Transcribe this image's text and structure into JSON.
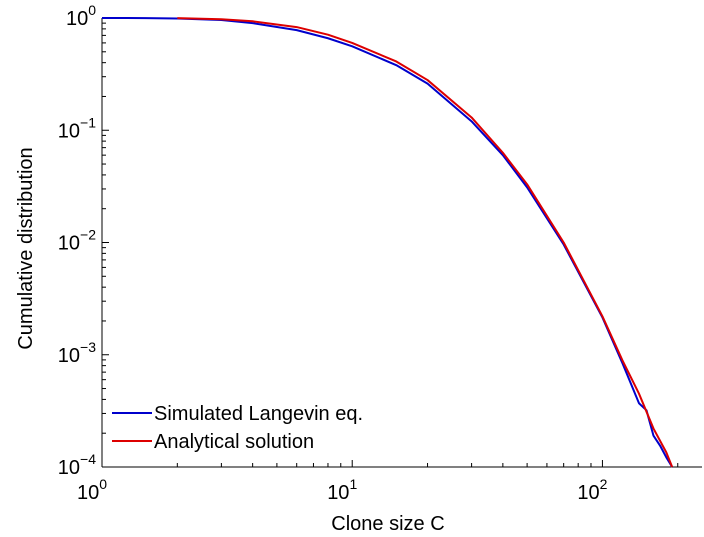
{
  "chart_data": {
    "type": "line",
    "xlabel": "Clone size C",
    "ylabel": "Cumulative distribution",
    "xscale": "log",
    "yscale": "log",
    "xlim": [
      1,
      250
    ],
    "ylim": [
      0.0001,
      1
    ],
    "grid": false,
    "legend_placement": "bottom-left",
    "x_ticks": [
      {
        "base": "10",
        "exp": "0",
        "value": 1
      },
      {
        "base": "10",
        "exp": "1",
        "value": 10
      },
      {
        "base": "10",
        "exp": "2",
        "value": 100
      }
    ],
    "y_ticks": [
      {
        "base": "10",
        "exp": "0",
        "value": 1
      },
      {
        "base": "10",
        "exp": "−1",
        "value": 0.1
      },
      {
        "base": "10",
        "exp": "−2",
        "value": 0.01
      },
      {
        "base": "10",
        "exp": "−3",
        "value": 0.001
      },
      {
        "base": "10",
        "exp": "−4",
        "value": 0.0001
      }
    ],
    "series": [
      {
        "name": "Simulated Langevin eq.",
        "color": "#0000cc",
        "x": [
          1,
          1.5,
          2,
          3,
          4,
          6,
          8,
          10,
          15,
          20,
          30,
          40,
          50,
          70,
          100,
          120,
          140,
          150,
          160,
          170,
          180,
          190
        ],
        "y": [
          1,
          0.998,
          0.99,
          0.96,
          0.9,
          0.78,
          0.66,
          0.56,
          0.38,
          0.26,
          0.12,
          0.06,
          0.031,
          0.0096,
          0.00215,
          0.00085,
          0.00037,
          0.00032,
          0.00019,
          0.000155,
          0.000122,
          0.0001
        ]
      },
      {
        "name": "Analytical solution",
        "color": "#dd0000",
        "x": [
          2,
          3,
          4,
          6,
          8,
          10,
          15,
          20,
          30,
          40,
          50,
          70,
          100,
          120,
          140,
          160,
          180,
          190
        ],
        "y": [
          0.997,
          0.975,
          0.935,
          0.83,
          0.71,
          0.6,
          0.41,
          0.28,
          0.13,
          0.063,
          0.033,
          0.01,
          0.0022,
          0.0009,
          0.00045,
          0.00022,
          0.000135,
          0.0001
        ]
      }
    ]
  }
}
